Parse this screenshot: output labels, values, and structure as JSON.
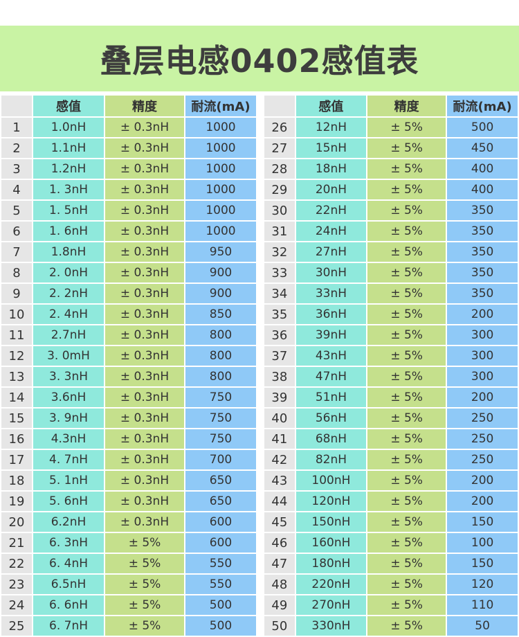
{
  "title": "叠层电感0402感值表",
  "headers": {
    "index": "",
    "inductance": "感值",
    "tolerance": "精度",
    "current": "耐流(mA)"
  },
  "left_rows": [
    {
      "n": "1",
      "ind": "1.0nH",
      "tol": "± 0.3nH",
      "cur": "1000"
    },
    {
      "n": "2",
      "ind": "1.1nH",
      "tol": "± 0.3nH",
      "cur": "1000"
    },
    {
      "n": "3",
      "ind": "1.2nH",
      "tol": "± 0.3nH",
      "cur": "1000"
    },
    {
      "n": "4",
      "ind": "1. 3nH",
      "tol": "± 0.3nH",
      "cur": "1000"
    },
    {
      "n": "5",
      "ind": "1. 5nH",
      "tol": "± 0.3nH",
      "cur": "1000"
    },
    {
      "n": "6",
      "ind": "1. 6nH",
      "tol": "± 0.3nH",
      "cur": "1000"
    },
    {
      "n": "7",
      "ind": "1.8nH",
      "tol": "± 0.3nH",
      "cur": "950"
    },
    {
      "n": "8",
      "ind": "2. 0nH",
      "tol": "± 0.3nH",
      "cur": "900"
    },
    {
      "n": "9",
      "ind": "2. 2nH",
      "tol": "± 0.3nH",
      "cur": "900"
    },
    {
      "n": "10",
      "ind": "2. 4nH",
      "tol": "± 0.3nH",
      "cur": "850"
    },
    {
      "n": "11",
      "ind": "2.7nH",
      "tol": "± 0.3nH",
      "cur": "800"
    },
    {
      "n": "12",
      "ind": "3. 0mH",
      "tol": "± 0.3nH",
      "cur": "800"
    },
    {
      "n": "13",
      "ind": "3. 3nH",
      "tol": "± 0.3nH",
      "cur": "800"
    },
    {
      "n": "14",
      "ind": "3.6nH",
      "tol": "± 0.3nH",
      "cur": "750"
    },
    {
      "n": "15",
      "ind": "3. 9nH",
      "tol": "± 0.3nH",
      "cur": "750"
    },
    {
      "n": "16",
      "ind": "4.3nH",
      "tol": "± 0.3nH",
      "cur": "750"
    },
    {
      "n": "17",
      "ind": "4. 7nH",
      "tol": "± 0.3nH",
      "cur": "700"
    },
    {
      "n": "18",
      "ind": "5. 1nH",
      "tol": "± 0.3nH",
      "cur": "650"
    },
    {
      "n": "19",
      "ind": "5. 6nH",
      "tol": "± 0.3nH",
      "cur": "650"
    },
    {
      "n": "20",
      "ind": "6.2nH",
      "tol": "± 0.3nH",
      "cur": "600"
    },
    {
      "n": "21",
      "ind": "6. 3nH",
      "tol": "± 5%",
      "cur": "600"
    },
    {
      "n": "22",
      "ind": "6. 4nH",
      "tol": "± 5%",
      "cur": "550"
    },
    {
      "n": "23",
      "ind": "6.5nH",
      "tol": "± 5%",
      "cur": "550"
    },
    {
      "n": "24",
      "ind": "6. 6nH",
      "tol": "± 5%",
      "cur": "500"
    },
    {
      "n": "25",
      "ind": "6. 7nH",
      "tol": "± 5%",
      "cur": "500"
    }
  ],
  "right_rows": [
    {
      "n": "26",
      "ind": "12nH",
      "tol": "± 5%",
      "cur": "500"
    },
    {
      "n": "27",
      "ind": "15nH",
      "tol": "± 5%",
      "cur": "450"
    },
    {
      "n": "28",
      "ind": "18nH",
      "tol": "± 5%",
      "cur": "400"
    },
    {
      "n": "29",
      "ind": "20nH",
      "tol": "± 5%",
      "cur": "400"
    },
    {
      "n": "30",
      "ind": "22nH",
      "tol": "± 5%",
      "cur": "350"
    },
    {
      "n": "31",
      "ind": "24nH",
      "tol": "± 5%",
      "cur": "350"
    },
    {
      "n": "32",
      "ind": "27nH",
      "tol": "± 5%",
      "cur": "350"
    },
    {
      "n": "33",
      "ind": "30nH",
      "tol": "± 5%",
      "cur": "350"
    },
    {
      "n": "34",
      "ind": "33nH",
      "tol": "± 5%",
      "cur": "350"
    },
    {
      "n": "35",
      "ind": "36nH",
      "tol": "± 5%",
      "cur": "200"
    },
    {
      "n": "36",
      "ind": "39nH",
      "tol": "± 5%",
      "cur": "300"
    },
    {
      "n": "37",
      "ind": "43nH",
      "tol": "± 5%",
      "cur": "300"
    },
    {
      "n": "38",
      "ind": "47nH",
      "tol": "± 5%",
      "cur": "300"
    },
    {
      "n": "39",
      "ind": "51nH",
      "tol": "± 5%",
      "cur": "200"
    },
    {
      "n": "40",
      "ind": "56nH",
      "tol": "± 5%",
      "cur": "250"
    },
    {
      "n": "41",
      "ind": "68nH",
      "tol": "± 5%",
      "cur": "250"
    },
    {
      "n": "42",
      "ind": "82nH",
      "tol": "± 5%",
      "cur": "250"
    },
    {
      "n": "43",
      "ind": "100nH",
      "tol": "± 5%",
      "cur": "200"
    },
    {
      "n": "44",
      "ind": "120nH",
      "tol": "± 5%",
      "cur": "200"
    },
    {
      "n": "45",
      "ind": "150nH",
      "tol": "± 5%",
      "cur": "150"
    },
    {
      "n": "46",
      "ind": "160nH",
      "tol": "± 5%",
      "cur": "100"
    },
    {
      "n": "47",
      "ind": "180nH",
      "tol": "± 5%",
      "cur": "150"
    },
    {
      "n": "48",
      "ind": "220nH",
      "tol": "± 5%",
      "cur": "120"
    },
    {
      "n": "49",
      "ind": "270nH",
      "tol": "± 5%",
      "cur": "110"
    },
    {
      "n": "50",
      "ind": "330nH",
      "tol": "± 5%",
      "cur": "50"
    }
  ],
  "colors": {
    "banner": "#c9f3a4",
    "index_col": "#e6e6e6",
    "inductance_col": "#8fe9dc",
    "tolerance_col": "#c5e08c",
    "current_col": "#8fc9f7"
  }
}
